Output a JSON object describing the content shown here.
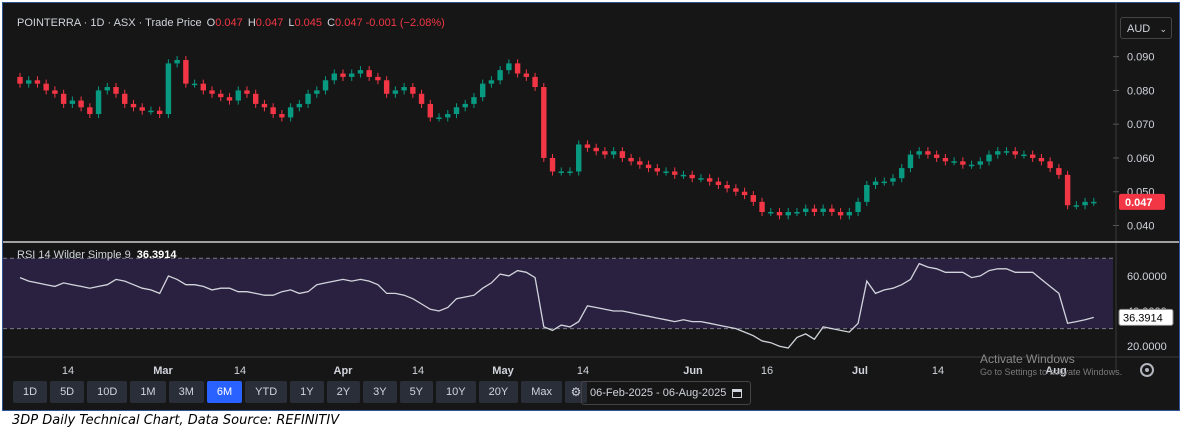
{
  "legend": {
    "symbol": "POINTERRA · 1D · ASX · Trade Price",
    "open_label": "O",
    "open": "0.047",
    "high_label": "H",
    "high": "0.047",
    "low_label": "L",
    "low": "0.045",
    "close_label": "C",
    "close": "0.047",
    "change": "-0.001 (−2.08%)"
  },
  "currency": "AUD",
  "last_price_label": "0.047",
  "rsi": {
    "title": "RSI 14 Wilder Simple 9",
    "value": "36.3914"
  },
  "timeframes": [
    "1D",
    "5D",
    "10D",
    "1M",
    "3M",
    "6M",
    "YTD",
    "1Y",
    "2Y",
    "3Y",
    "5Y",
    "10Y",
    "20Y",
    "Max"
  ],
  "active_timeframe": "6M",
  "date_range": "06-Feb-2025 - 06-Aug-2025",
  "watermark": {
    "title": "Activate Windows",
    "subtitle": "Go to Settings to activate Windows."
  },
  "caption": "3DP Daily Technical Chart, Data Source: REFINITIV",
  "colors": {
    "up": "#089981",
    "down": "#f23645",
    "rsi_line": "#d1d4dc",
    "rsi_band": "#2a2140",
    "background": "#161616"
  },
  "chart_data": [
    {
      "type": "candlestick",
      "title": "POINTERRA · 1D · ASX · Trade Price",
      "x_ticks": [
        "14",
        "Mar",
        "14",
        "Apr",
        "14",
        "May",
        "14",
        "Jun",
        "16",
        "Jul",
        "14",
        "Aug"
      ],
      "y_ticks": [
        "0.090",
        "0.080",
        "0.070",
        "0.060",
        "0.050",
        "0.040"
      ],
      "ylim": [
        0.036,
        0.097
      ],
      "close_approx": [
        0.082,
        0.083,
        0.082,
        0.08,
        0.079,
        0.076,
        0.077,
        0.075,
        0.073,
        0.08,
        0.081,
        0.079,
        0.076,
        0.075,
        0.074,
        0.074,
        0.073,
        0.088,
        0.089,
        0.082,
        0.082,
        0.08,
        0.079,
        0.078,
        0.077,
        0.08,
        0.079,
        0.076,
        0.075,
        0.073,
        0.072,
        0.075,
        0.076,
        0.079,
        0.08,
        0.083,
        0.085,
        0.084,
        0.085,
        0.086,
        0.084,
        0.083,
        0.079,
        0.08,
        0.081,
        0.079,
        0.076,
        0.072,
        0.072,
        0.073,
        0.075,
        0.076,
        0.078,
        0.082,
        0.083,
        0.086,
        0.088,
        0.085,
        0.084,
        0.081,
        0.06,
        0.056,
        0.056,
        0.056,
        0.064,
        0.063,
        0.062,
        0.061,
        0.062,
        0.06,
        0.059,
        0.058,
        0.057,
        0.056,
        0.056,
        0.055,
        0.055,
        0.054,
        0.054,
        0.053,
        0.052,
        0.051,
        0.05,
        0.049,
        0.047,
        0.044,
        0.044,
        0.043,
        0.044,
        0.044,
        0.045,
        0.044,
        0.045,
        0.044,
        0.043,
        0.044,
        0.047,
        0.052,
        0.053,
        0.053,
        0.054,
        0.057,
        0.061,
        0.062,
        0.061,
        0.06,
        0.059,
        0.059,
        0.058,
        0.058,
        0.059,
        0.061,
        0.062,
        0.062,
        0.061,
        0.061,
        0.06,
        0.059,
        0.057,
        0.055,
        0.046,
        0.046,
        0.047,
        0.047
      ]
    },
    {
      "type": "line",
      "title": "RSI 14 Wilder Simple 9",
      "y_ticks": [
        "60.0000",
        "40.0000",
        "20.0000"
      ],
      "ylim": [
        15,
        73
      ],
      "band": [
        30,
        70
      ],
      "last_value": 36.3914,
      "values_approx": [
        59,
        57,
        56,
        55,
        54,
        56,
        55,
        54,
        53,
        54,
        55,
        58,
        57,
        55,
        53,
        52,
        50,
        60,
        58,
        55,
        55,
        54,
        52,
        53,
        53,
        51,
        51,
        50,
        49,
        49,
        51,
        52,
        50,
        51,
        55,
        56,
        57,
        58,
        57,
        58,
        57,
        55,
        50,
        50,
        49,
        47,
        44,
        41,
        40,
        42,
        47,
        48,
        49,
        53,
        56,
        61,
        60,
        63,
        62,
        59,
        31,
        29,
        32,
        31,
        34,
        43,
        42,
        41,
        40,
        40,
        39,
        38,
        37,
        36,
        35,
        34,
        35,
        34,
        34,
        33,
        32,
        31,
        30,
        28,
        26,
        23,
        22,
        20,
        19,
        25,
        27,
        24,
        31,
        30,
        29,
        28,
        33,
        57,
        50,
        52,
        53,
        55,
        58,
        67,
        65,
        64,
        62,
        62,
        62,
        59,
        60,
        63,
        64,
        64,
        62,
        62,
        62,
        58,
        54,
        50,
        33,
        34,
        35,
        36.3914
      ]
    }
  ]
}
